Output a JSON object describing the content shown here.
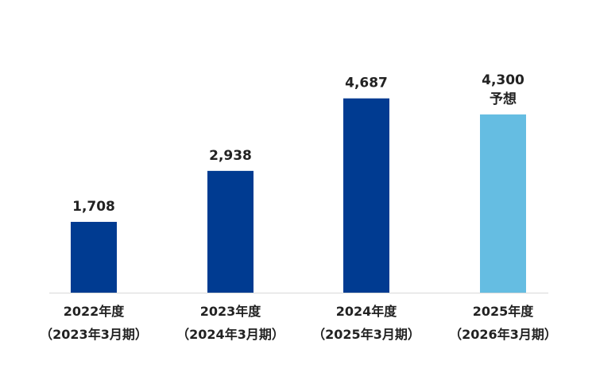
{
  "chart_data": {
    "type": "bar",
    "title": "",
    "xlabel": "",
    "ylabel": "",
    "ylim": [
      0,
      5000
    ],
    "grid": false,
    "legend": "none",
    "categories": [
      {
        "fiscal_year": "2022年度",
        "period": "（2023年3月期）"
      },
      {
        "fiscal_year": "2023年度",
        "period": "（2024年3月期）"
      },
      {
        "fiscal_year": "2024年度",
        "period": "（2025年3月期）"
      },
      {
        "fiscal_year": "2025年度",
        "period": "（2026年3月期）"
      }
    ],
    "values": [
      1708,
      2938,
      4687,
      4300
    ],
    "value_labels": [
      "1,708",
      "2,938",
      "4,687",
      "4,300"
    ],
    "annotations": [
      "",
      "",
      "",
      "予想"
    ],
    "forecast": [
      false,
      false,
      false,
      true
    ],
    "colors": {
      "actual": "#003b91",
      "forecast": "#65bde2",
      "baseline": "#d9d9d9",
      "text": "#222222"
    }
  }
}
